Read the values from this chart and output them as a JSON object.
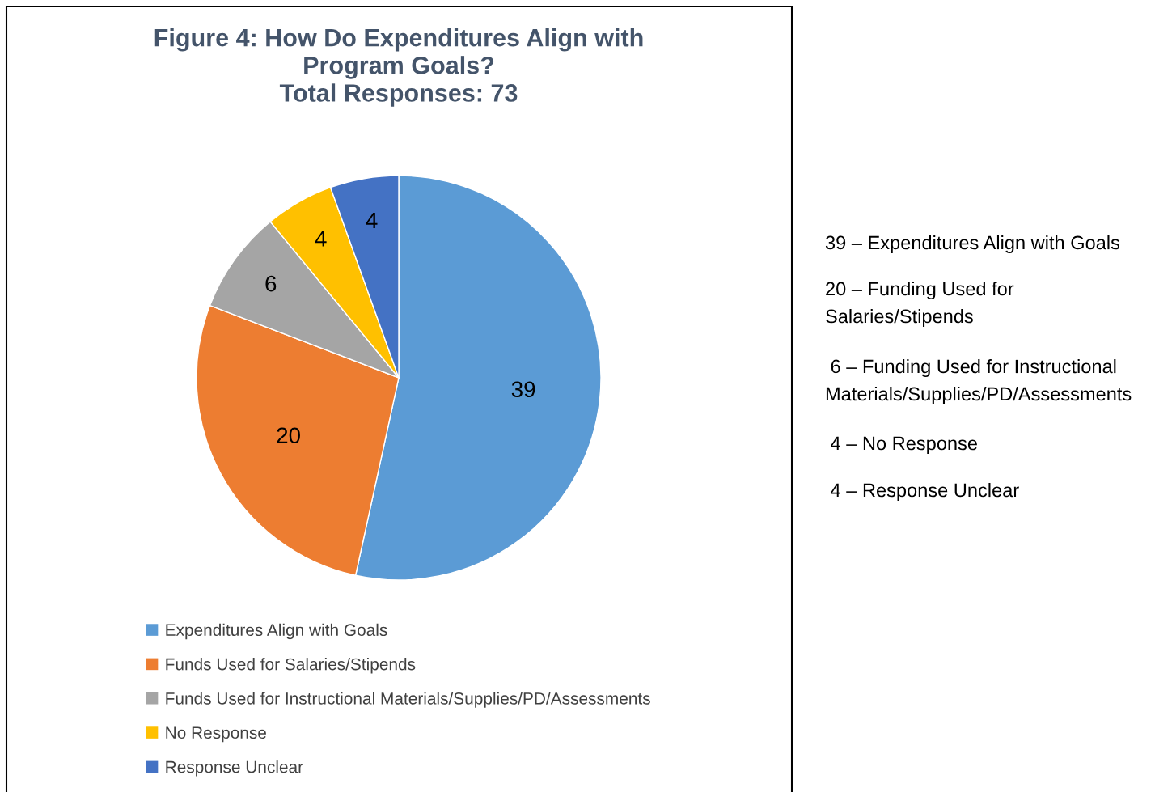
{
  "chart_data": {
    "type": "pie",
    "title": "Figure 4: How Do Expenditures Align with\nProgram Goals?\nTotal Responses: 73",
    "categories": [
      "Expenditures Align with Goals",
      "Funds Used for Salaries/Stipends",
      "Funds Used for Instructional Materials/Supplies/PD/Assessments",
      "No Response",
      "Response Unclear"
    ],
    "values": [
      39,
      20,
      6,
      4,
      4
    ],
    "colors": [
      "#5b9bd5",
      "#ed7d31",
      "#a5a5a5",
      "#ffc000",
      "#4472c4"
    ],
    "data_labels": true,
    "legend": "bottom left",
    "annotations": [
      "39 – Expenditures Align with Goals",
      "20 – Funding Used for\nSalaries/Stipends",
      " 6 – Funding Used for Instructional\nMaterials/Supplies/PD/Assessments",
      " 4 – No Response",
      " 4 – Response Unclear"
    ]
  }
}
